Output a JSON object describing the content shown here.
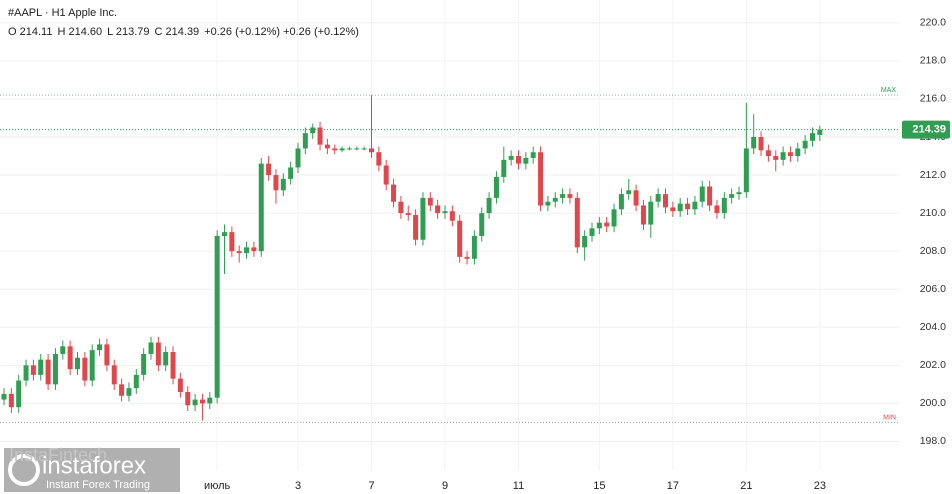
{
  "chart_data": {
    "type": "candlestick",
    "title": "#AAPL · H1 Apple Inc.",
    "ohlc_legend": [
      {
        "value": 214.11,
        "label": "O 214.11"
      },
      {
        "value": 214.6,
        "label": "H 214.60"
      },
      {
        "value": 213.79,
        "label": "L 213.79"
      },
      {
        "value": 214.39,
        "label": "C 214.39"
      }
    ],
    "change_text": "+0.26 (+0.12%) +0.26 (+0.12%)",
    "watermark": {
      "brand": "instaforex",
      "tagline": "Instant Forex Trading",
      "faint": "InstaFintech"
    },
    "up_color": "#2f9e52",
    "down_color": "#e0474c",
    "ylim": [
      196.5,
      221.2
    ],
    "yticks": [
      {
        "value": 198,
        "label": "198.0"
      },
      {
        "value": 200,
        "label": "200.0"
      },
      {
        "value": 202,
        "label": "202.0"
      },
      {
        "value": 204,
        "label": "204.0"
      },
      {
        "value": 206,
        "label": "206.0"
      },
      {
        "value": 208,
        "label": "208.0"
      },
      {
        "value": 210,
        "label": "210.0"
      },
      {
        "value": 212,
        "label": "212.0"
      },
      {
        "value": 214,
        "label": "214.0"
      },
      {
        "value": 216,
        "label": "216.0"
      },
      {
        "value": 218,
        "label": "218.0"
      },
      {
        "value": 220,
        "label": "220.0"
      }
    ],
    "grid": true,
    "max_line": {
      "value": 216.2,
      "label": "MAX"
    },
    "min_line": {
      "value": 199.0,
      "label": "MIN"
    },
    "categories": [
      null,
      null,
      null,
      null,
      null,
      null,
      null,
      null,
      null,
      null,
      null,
      null,
      null,
      null,
      null,
      null,
      null,
      null,
      null,
      null,
      null,
      null,
      null,
      null,
      null,
      null,
      null,
      null,
      null,
      "июль",
      null,
      null,
      null,
      null,
      null,
      null,
      null,
      null,
      null,
      null,
      "3",
      null,
      null,
      null,
      null,
      null,
      null,
      null,
      null,
      null,
      "7",
      null,
      null,
      null,
      null,
      null,
      null,
      null,
      null,
      null,
      "9",
      null,
      null,
      null,
      null,
      null,
      null,
      null,
      null,
      null,
      "11",
      null,
      null,
      null,
      null,
      null,
      null,
      null,
      null,
      null,
      null,
      "15",
      null,
      null,
      null,
      null,
      null,
      null,
      null,
      null,
      null,
      "17",
      null,
      null,
      null,
      null,
      null,
      null,
      null,
      null,
      null,
      "21",
      null,
      null,
      null,
      null,
      null,
      null,
      null,
      null,
      null,
      "23"
    ],
    "open": [
      200.2,
      200.5,
      199.8,
      201.2,
      202.0,
      201.5,
      202.3,
      201.0,
      202.6,
      203.0,
      201.8,
      202.4,
      201.2,
      202.8,
      203.1,
      202.0,
      201.0,
      200.4,
      200.8,
      201.5,
      202.6,
      203.2,
      202.0,
      202.7,
      201.3,
      200.6,
      199.9,
      200.2,
      200.0,
      200.3,
      208.8,
      209.0,
      208.0,
      207.9,
      208.2,
      208.0,
      212.6,
      212.0,
      211.2,
      211.8,
      212.4,
      213.4,
      214.2,
      214.5,
      213.6,
      213.4,
      213.3,
      213.4,
      213.4,
      213.4,
      213.4,
      213.2,
      212.5,
      211.5,
      210.6,
      210.0,
      209.9,
      208.6,
      210.8,
      210.4,
      210.0,
      210.1,
      209.6,
      207.7,
      207.6,
      208.8,
      210.0,
      210.8,
      211.9,
      212.8,
      213.0,
      212.6,
      212.9,
      213.2,
      210.4,
      210.6,
      210.8,
      211.0,
      210.8,
      208.2,
      208.8,
      209.2,
      209.5,
      209.3,
      210.2,
      211.0,
      211.2,
      210.4,
      209.4,
      210.6,
      211.0,
      210.3,
      210.1,
      210.5,
      210.2,
      210.6,
      211.4,
      210.4,
      210.0,
      210.8,
      211.0,
      211.1,
      213.4,
      214.0,
      213.3,
      213.0,
      212.8,
      213.2,
      213.0,
      213.4,
      213.8,
      214.11
    ],
    "high": [
      200.8,
      200.8,
      201.5,
      202.3,
      202.3,
      202.6,
      202.6,
      202.9,
      203.3,
      203.3,
      202.7,
      202.7,
      203.1,
      203.4,
      203.4,
      202.3,
      201.3,
      201.1,
      201.8,
      202.9,
      203.5,
      203.5,
      203.0,
      203.0,
      201.6,
      200.9,
      200.5,
      200.5,
      200.6,
      209.1,
      209.4,
      209.3,
      208.3,
      208.5,
      208.5,
      212.9,
      213.0,
      212.3,
      212.1,
      212.7,
      213.7,
      214.5,
      214.7,
      214.8,
      213.9,
      213.6,
      213.5,
      213.5,
      213.5,
      213.5,
      216.2,
      213.5,
      212.8,
      211.8,
      210.9,
      210.4,
      210.2,
      211.1,
      211.1,
      210.7,
      210.4,
      210.4,
      209.9,
      208.0,
      209.1,
      210.3,
      211.1,
      212.2,
      213.5,
      213.3,
      213.3,
      213.2,
      213.5,
      213.5,
      210.9,
      211.1,
      211.3,
      211.3,
      211.1,
      209.1,
      209.5,
      209.8,
      209.8,
      210.5,
      211.3,
      211.8,
      211.5,
      210.7,
      210.9,
      211.3,
      211.3,
      210.6,
      210.8,
      210.8,
      210.9,
      211.7,
      211.7,
      210.7,
      211.1,
      211.3,
      211.4,
      215.8,
      215.2,
      214.3,
      213.6,
      213.3,
      213.5,
      213.5,
      213.7,
      214.1,
      214.5,
      214.6
    ],
    "low": [
      199.9,
      199.5,
      199.5,
      200.9,
      201.2,
      201.2,
      200.7,
      200.7,
      202.3,
      201.5,
      201.5,
      200.9,
      200.9,
      202.5,
      201.7,
      200.7,
      200.1,
      200.1,
      200.5,
      201.2,
      202.3,
      201.7,
      201.7,
      201.0,
      200.3,
      199.6,
      199.6,
      199.1,
      199.7,
      200.0,
      206.8,
      207.7,
      207.4,
      207.6,
      207.7,
      207.7,
      211.7,
      210.5,
      210.9,
      211.5,
      212.1,
      213.1,
      213.9,
      213.3,
      213.1,
      213.1,
      213.2,
      213.3,
      213.3,
      213.3,
      212.9,
      212.2,
      211.2,
      210.3,
      209.7,
      209.6,
      208.3,
      208.3,
      210.1,
      209.7,
      209.7,
      209.3,
      207.4,
      207.3,
      207.3,
      208.5,
      209.7,
      210.5,
      211.6,
      212.5,
      212.3,
      212.3,
      212.6,
      210.1,
      210.1,
      210.3,
      210.5,
      210.5,
      207.9,
      207.5,
      208.5,
      208.9,
      209.0,
      209.0,
      209.9,
      210.7,
      210.1,
      209.1,
      208.7,
      210.3,
      210.0,
      209.8,
      209.8,
      209.9,
      209.9,
      210.3,
      210.1,
      209.7,
      209.7,
      210.5,
      210.7,
      210.8,
      213.1,
      213.0,
      212.7,
      212.2,
      212.5,
      212.7,
      212.7,
      213.1,
      213.5,
      213.79
    ],
    "close": [
      200.5,
      199.8,
      201.2,
      202.0,
      201.5,
      202.3,
      201.0,
      202.6,
      203.0,
      201.8,
      202.4,
      201.2,
      202.8,
      203.1,
      202.0,
      201.0,
      200.4,
      200.8,
      201.5,
      202.6,
      203.2,
      202.0,
      202.7,
      201.3,
      200.6,
      199.9,
      200.2,
      200.0,
      200.3,
      208.8,
      209.0,
      208.0,
      207.9,
      208.2,
      208.0,
      212.6,
      212.0,
      211.2,
      211.8,
      212.4,
      213.4,
      214.2,
      214.5,
      213.6,
      213.4,
      213.3,
      213.4,
      213.4,
      213.4,
      213.4,
      213.2,
      212.5,
      211.5,
      210.6,
      210.0,
      209.9,
      208.6,
      210.8,
      210.4,
      210.0,
      210.1,
      209.6,
      207.7,
      207.6,
      208.8,
      210.0,
      210.8,
      211.9,
      212.8,
      213.0,
      212.6,
      212.9,
      213.2,
      210.4,
      210.6,
      210.8,
      211.0,
      210.8,
      208.2,
      208.8,
      209.2,
      209.5,
      209.3,
      210.2,
      211.0,
      211.2,
      210.4,
      209.4,
      210.6,
      211.0,
      210.3,
      210.1,
      210.5,
      210.2,
      210.6,
      211.4,
      210.4,
      210.0,
      210.8,
      211.0,
      211.1,
      213.4,
      214.0,
      213.3,
      213.0,
      212.8,
      213.2,
      213.0,
      213.4,
      213.8,
      214.2,
      214.39
    ]
  }
}
